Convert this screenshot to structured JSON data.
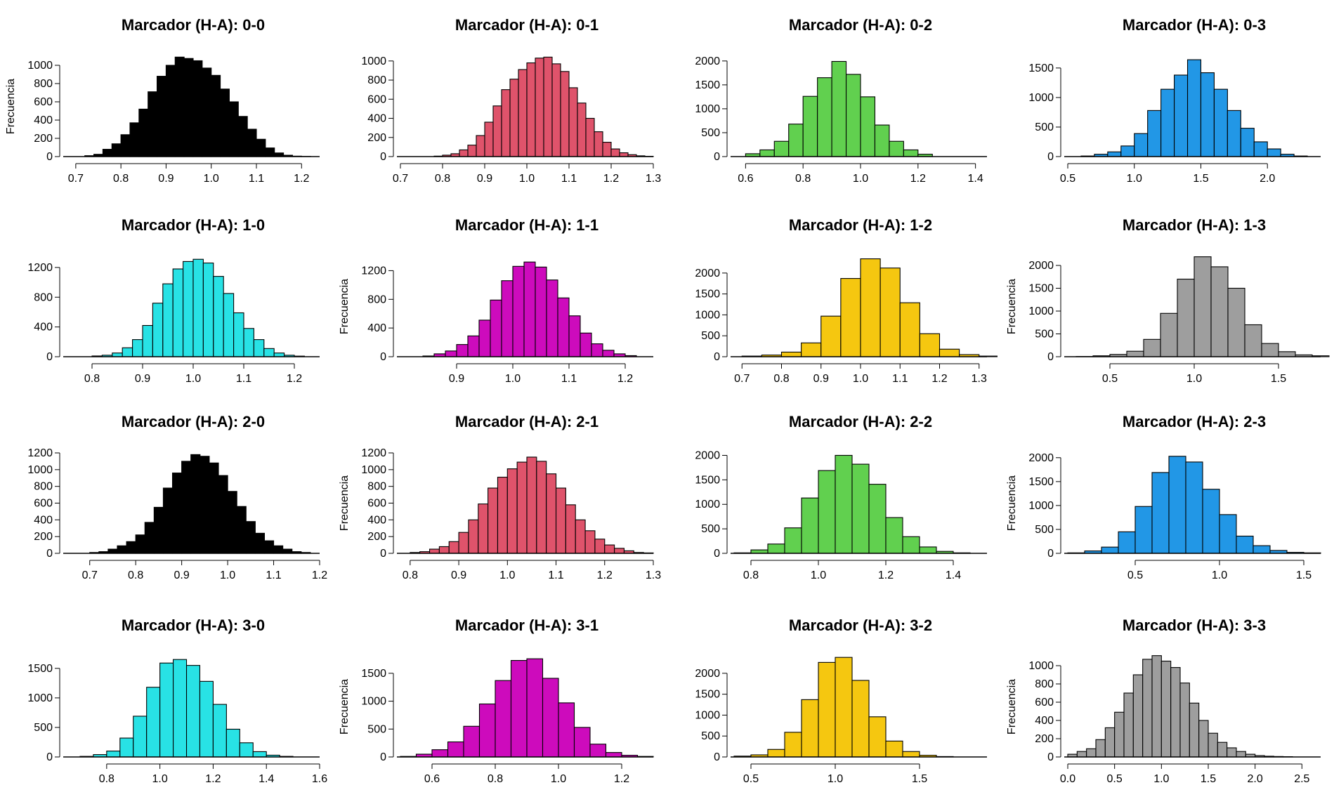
{
  "colors": [
    "#000000",
    "#DF536B",
    "#61D04F",
    "#2297E6",
    "#28E2E5",
    "#CD0BBC",
    "#F5C710",
    "#9E9E9E"
  ],
  "chart_data": [
    {
      "type": "bar",
      "title": "Marcador (H-A): 0-0",
      "ylabel": "Frecuencia",
      "color": "#000000",
      "bin_start": 0.72,
      "bin_width": 0.02,
      "values": [
        10,
        25,
        80,
        140,
        240,
        370,
        520,
        710,
        880,
        1000,
        1090,
        1075,
        1050,
        970,
        890,
        740,
        600,
        440,
        300,
        190,
        95,
        40,
        15,
        5,
        2
      ],
      "xlim": [
        0.68,
        1.24
      ],
      "ylim": [
        0,
        1100
      ],
      "xticks": [
        0.7,
        0.8,
        0.9,
        1.0,
        1.1,
        1.2
      ],
      "yticks": [
        0,
        200,
        400,
        600,
        800,
        1000
      ]
    },
    {
      "type": "bar",
      "title": "Marcador (H-A): 0-1",
      "ylabel": "",
      "color": "#DF536B",
      "bin_start": 0.78,
      "bin_width": 0.02,
      "values": [
        5,
        15,
        30,
        70,
        120,
        220,
        360,
        530,
        700,
        810,
        910,
        980,
        1030,
        1040,
        970,
        890,
        720,
        560,
        400,
        260,
        150,
        80,
        40,
        20,
        8,
        3
      ],
      "xlim": [
        0.7,
        1.3
      ],
      "ylim": [
        0,
        1050
      ],
      "xticks": [
        0.7,
        0.8,
        0.9,
        1.0,
        1.1,
        1.2,
        1.3
      ],
      "yticks": [
        0,
        200,
        400,
        600,
        800,
        1000
      ]
    },
    {
      "type": "bar",
      "title": "Marcador (H-A): 0-2",
      "ylabel": "",
      "color": "#61D04F",
      "bin_start": 0.6,
      "bin_width": 0.05,
      "values": [
        60,
        140,
        320,
        680,
        1260,
        1650,
        1990,
        1720,
        1250,
        660,
        320,
        140,
        50
      ],
      "xlim": [
        0.56,
        1.44
      ],
      "ylim": [
        0,
        2100
      ],
      "xticks": [
        0.6,
        0.8,
        1.0,
        1.2,
        1.4
      ],
      "yticks": [
        0,
        500,
        1000,
        1500,
        2000
      ]
    },
    {
      "type": "bar",
      "title": "Marcador (H-A): 0-3",
      "ylabel": "",
      "color": "#2297E6",
      "bin_start": 0.6,
      "bin_width": 0.1,
      "values": [
        10,
        40,
        80,
        180,
        390,
        780,
        1140,
        1380,
        1640,
        1420,
        1140,
        780,
        480,
        250,
        130,
        40,
        10
      ],
      "xlim": [
        0.5,
        2.4
      ],
      "ylim": [
        0,
        1700
      ],
      "xticks": [
        0.5,
        1.0,
        1.5,
        2.0
      ],
      "yticks": [
        0,
        500,
        1000,
        1500
      ]
    },
    {
      "type": "bar",
      "title": "Marcador (H-A): 1-0",
      "ylabel": "",
      "color": "#28E2E5",
      "bin_start": 0.8,
      "bin_width": 0.02,
      "values": [
        10,
        20,
        50,
        120,
        230,
        420,
        720,
        980,
        1180,
        1280,
        1310,
        1260,
        1080,
        850,
        590,
        380,
        230,
        110,
        50,
        20,
        8
      ],
      "xlim": [
        0.75,
        1.25
      ],
      "ylim": [
        0,
        1350
      ],
      "xticks": [
        0.8,
        0.9,
        1.0,
        1.1,
        1.2
      ],
      "yticks": [
        0,
        400,
        800,
        1200
      ]
    },
    {
      "type": "bar",
      "title": "Marcador (H-A): 1-1",
      "ylabel": "Frecuencia",
      "color": "#CD0BBC",
      "bin_start": 0.84,
      "bin_width": 0.02,
      "values": [
        10,
        40,
        80,
        170,
        290,
        510,
        790,
        1060,
        1260,
        1320,
        1250,
        1070,
        820,
        570,
        330,
        180,
        90,
        40,
        15
      ],
      "xlim": [
        0.8,
        1.25
      ],
      "ylim": [
        0,
        1400
      ],
      "xticks": [
        0.9,
        1.0,
        1.1,
        1.2
      ],
      "yticks": [
        0,
        400,
        800,
        1200
      ]
    },
    {
      "type": "bar",
      "title": "Marcador (H-A): 1-2",
      "ylabel": "",
      "color": "#F5C710",
      "bin_start": 0.7,
      "bin_width": 0.05,
      "values": [
        15,
        40,
        110,
        330,
        970,
        1870,
        2340,
        2120,
        1290,
        550,
        180,
        50,
        15
      ],
      "xlim": [
        0.68,
        1.32
      ],
      "ylim": [
        0,
        2400
      ],
      "xticks": [
        0.7,
        0.8,
        0.9,
        1.0,
        1.1,
        1.2,
        1.3
      ],
      "yticks": [
        0,
        500,
        1000,
        1500,
        2000
      ]
    },
    {
      "type": "bar",
      "title": "Marcador (H-A): 1-3",
      "ylabel": "Frecuencia",
      "color": "#9E9E9E",
      "bin_start": 0.3,
      "bin_width": 0.1,
      "values": [
        5,
        20,
        50,
        120,
        380,
        950,
        1700,
        2190,
        1970,
        1500,
        700,
        290,
        110,
        40,
        20
      ],
      "xlim": [
        0.25,
        1.75
      ],
      "ylim": [
        0,
        2200
      ],
      "xticks": [
        0.5,
        1.0,
        1.5
      ],
      "yticks": [
        0,
        500,
        1000,
        1500,
        2000
      ]
    },
    {
      "type": "bar",
      "title": "Marcador (H-A): 2-0",
      "ylabel": "",
      "color": "#000000",
      "bin_start": 0.7,
      "bin_width": 0.02,
      "values": [
        10,
        20,
        50,
        90,
        140,
        220,
        370,
        550,
        780,
        960,
        1100,
        1180,
        1160,
        1080,
        930,
        740,
        560,
        380,
        240,
        150,
        90,
        50,
        20,
        10
      ],
      "xlim": [
        0.65,
        1.2
      ],
      "ylim": [
        0,
        1200
      ],
      "xticks": [
        0.7,
        0.8,
        0.9,
        1.0,
        1.1,
        1.2
      ],
      "yticks": [
        0,
        200,
        400,
        600,
        800,
        1000,
        1200
      ]
    },
    {
      "type": "bar",
      "title": "Marcador (H-A): 2-1",
      "ylabel": "Frecuencia",
      "color": "#DF536B",
      "bin_start": 0.8,
      "bin_width": 0.02,
      "values": [
        10,
        20,
        50,
        80,
        140,
        250,
        400,
        590,
        780,
        910,
        1010,
        1090,
        1150,
        1100,
        950,
        780,
        580,
        400,
        270,
        170,
        100,
        60,
        30,
        10,
        5
      ],
      "xlim": [
        0.78,
        1.3
      ],
      "ylim": [
        0,
        1200
      ],
      "xticks": [
        0.8,
        0.9,
        1.0,
        1.1,
        1.2,
        1.3
      ],
      "yticks": [
        0,
        200,
        400,
        600,
        800,
        1000,
        1200
      ]
    },
    {
      "type": "bar",
      "title": "Marcador (H-A): 2-2",
      "ylabel": "",
      "color": "#61D04F",
      "bin_start": 0.75,
      "bin_width": 0.05,
      "values": [
        10,
        70,
        190,
        520,
        1130,
        1690,
        2000,
        1820,
        1410,
        730,
        340,
        130,
        40,
        10
      ],
      "xlim": [
        0.75,
        1.5
      ],
      "ylim": [
        0,
        2050
      ],
      "xticks": [
        0.8,
        1.0,
        1.2,
        1.4
      ],
      "yticks": [
        0,
        500,
        1000,
        1500,
        2000
      ]
    },
    {
      "type": "bar",
      "title": "Marcador (H-A): 2-3",
      "ylabel": "Frecuencia",
      "color": "#2297E6",
      "bin_start": 0.1,
      "bin_width": 0.1,
      "values": [
        10,
        50,
        130,
        450,
        980,
        1690,
        2030,
        1910,
        1340,
        810,
        360,
        160,
        60,
        20,
        10
      ],
      "xlim": [
        0.1,
        1.6
      ],
      "ylim": [
        0,
        2100
      ],
      "xticks": [
        0.5,
        1.0,
        1.5
      ],
      "yticks": [
        0,
        500,
        1000,
        1500,
        2000
      ]
    },
    {
      "type": "bar",
      "title": "Marcador (H-A): 3-0",
      "ylabel": "",
      "color": "#28E2E5",
      "bin_start": 0.7,
      "bin_width": 0.05,
      "values": [
        10,
        40,
        100,
        320,
        690,
        1180,
        1590,
        1650,
        1550,
        1280,
        890,
        470,
        240,
        90,
        30,
        10
      ],
      "xlim": [
        0.65,
        1.6
      ],
      "ylim": [
        0,
        1700
      ],
      "xticks": [
        0.8,
        1.0,
        1.2,
        1.4,
        1.6
      ],
      "yticks": [
        0,
        500,
        1000,
        1500
      ]
    },
    {
      "type": "bar",
      "title": "Marcador (H-A): 3-1",
      "ylabel": "Frecuencia",
      "color": "#CD0BBC",
      "bin_start": 0.5,
      "bin_width": 0.05,
      "values": [
        10,
        50,
        130,
        270,
        550,
        950,
        1370,
        1730,
        1760,
        1410,
        970,
        530,
        230,
        80,
        30,
        10
      ],
      "xlim": [
        0.5,
        1.3
      ],
      "ylim": [
        0,
        1800
      ],
      "xticks": [
        0.6,
        0.8,
        1.0,
        1.2
      ],
      "yticks": [
        0,
        500,
        1000,
        1500
      ]
    },
    {
      "type": "bar",
      "title": "Marcador (H-A): 3-2",
      "ylabel": "",
      "color": "#F5C710",
      "bin_start": 0.4,
      "bin_width": 0.1,
      "values": [
        20,
        50,
        180,
        590,
        1370,
        2260,
        2380,
        1830,
        960,
        380,
        130,
        40,
        10
      ],
      "xlim": [
        0.4,
        1.9
      ],
      "ylim": [
        0,
        2400
      ],
      "xticks": [
        0.5,
        1.0,
        1.5
      ],
      "yticks": [
        0,
        500,
        1000,
        1500,
        2000
      ]
    },
    {
      "type": "bar",
      "title": "Marcador (H-A): 3-3",
      "ylabel": "Frecuencia",
      "color": "#9E9E9E",
      "bin_start": 0.0,
      "bin_width": 0.1,
      "values": [
        30,
        60,
        90,
        190,
        320,
        490,
        700,
        900,
        1070,
        1110,
        1050,
        980,
        810,
        590,
        400,
        260,
        160,
        100,
        60,
        30,
        15,
        8,
        5,
        3
      ],
      "xlim": [
        0,
        2.7
      ],
      "ylim": [
        0,
        1100
      ],
      "xticks": [
        0.0,
        0.5,
        1.0,
        1.5,
        2.0,
        2.5
      ],
      "yticks": [
        0,
        200,
        400,
        600,
        800,
        1000
      ]
    }
  ]
}
